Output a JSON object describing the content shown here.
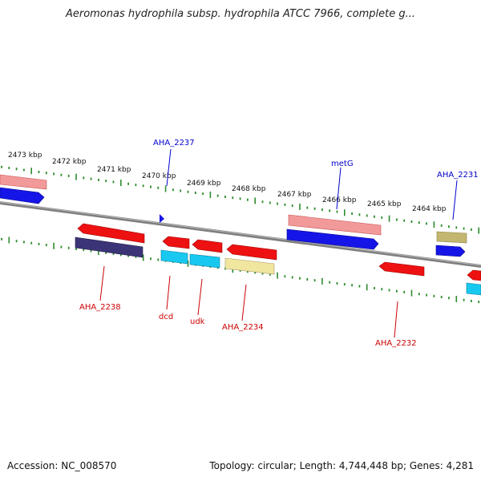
{
  "title": "Aeromonas hydrophila subsp. hydrophila ATCC 7966, complete g...",
  "accession": "Accession: NC_008570",
  "topology": "Topology: circular; Length: 4,744,448 bp; Genes: 4,281",
  "colors": {
    "backbone": "#8a8a8a",
    "tick": "#2e8b2e",
    "plus_label": "#0000cc",
    "minus_label": "#cc0000",
    "red": "#ee1111",
    "pink": "#f08c8c",
    "blue": "#1a1aee",
    "navy": "#3b3578",
    "cyan": "#18c8f0",
    "yellow": "#f0e6a0",
    "khaki": "#c2b670"
  },
  "scale_labels": [
    "2473 kbp",
    "2472 kbp",
    "2471 kbp",
    "2470 kbp",
    "2469 kbp",
    "2468 kbp",
    "2467 kbp",
    "2466 kbp",
    "2465 kbp",
    "2464 kbp"
  ],
  "gene_labels": [
    {
      "text": "AHA_2237",
      "strand": "plus"
    },
    {
      "text": "metG",
      "strand": "plus"
    },
    {
      "text": "AHA_2231",
      "strand": "plus"
    },
    {
      "text": "AHA_2238",
      "strand": "minus"
    },
    {
      "text": "dcd",
      "strand": "minus"
    },
    {
      "text": "udk",
      "strand": "minus"
    },
    {
      "text": "AHA_2234",
      "strand": "minus"
    },
    {
      "text": "AHA_2232",
      "strand": "minus"
    }
  ]
}
